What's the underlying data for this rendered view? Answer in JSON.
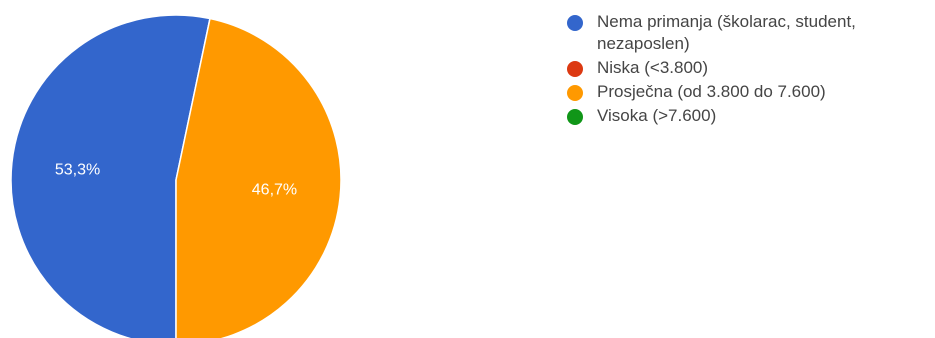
{
  "chart_data": {
    "type": "pie",
    "slices": [
      {
        "name": "Nema primanja (školarac, student, nezaposlen)",
        "value": 53.3,
        "label": "53,3%",
        "color": "#3366cc"
      },
      {
        "name": "Niska (<3.800)",
        "value": 0,
        "label": "",
        "color": "#dc3912"
      },
      {
        "name": "Prosječna (od 3.800 do 7.600)",
        "value": 46.7,
        "label": "46,7%",
        "color": "#ff9900"
      },
      {
        "name": "Visoka (>7.600)",
        "value": 0,
        "label": "",
        "color": "#109618"
      }
    ],
    "legend_position": "right"
  }
}
